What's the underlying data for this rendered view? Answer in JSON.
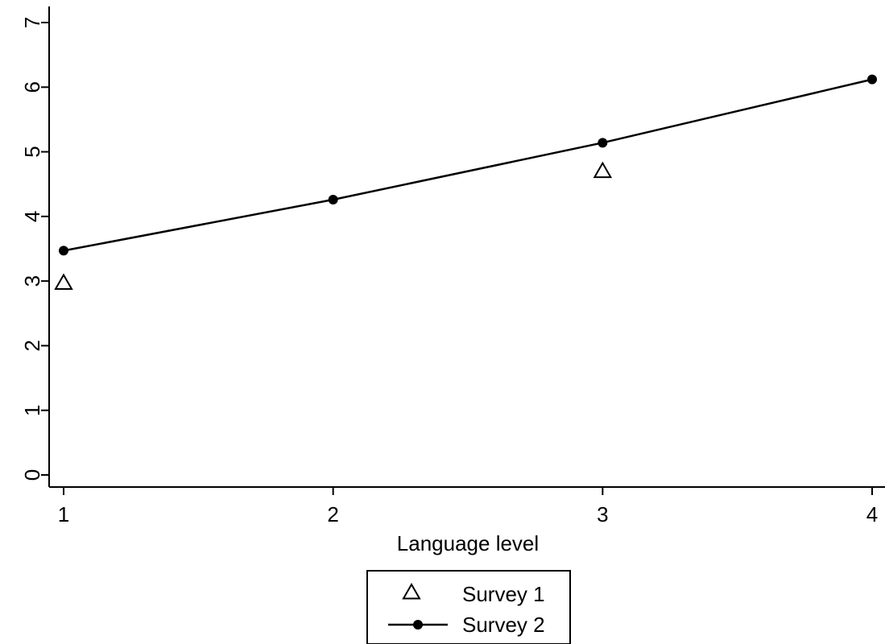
{
  "chart_data": {
    "type": "line",
    "xlabel": "Language level",
    "ylabel": "",
    "x_ticks": [
      "1",
      "2",
      "3",
      "4"
    ],
    "y_ticks": [
      "0",
      "1",
      "2",
      "3",
      "4",
      "5",
      "6",
      "7"
    ],
    "xlim": [
      1,
      4
    ],
    "ylim": [
      0,
      7
    ],
    "grid": false,
    "legend_position": "bottom-center",
    "series": [
      {
        "name": "Survey 1",
        "marker": "hollow-triangle",
        "line": false,
        "x": [
          1,
          3
        ],
        "y": [
          2.97,
          4.7
        ]
      },
      {
        "name": "Survey 2",
        "marker": "filled-circle",
        "line": true,
        "x": [
          1,
          2,
          3,
          4
        ],
        "y": [
          3.47,
          4.26,
          5.14,
          6.12
        ]
      }
    ],
    "colors": {
      "ink": "#000000",
      "background": "#ffffff"
    }
  }
}
